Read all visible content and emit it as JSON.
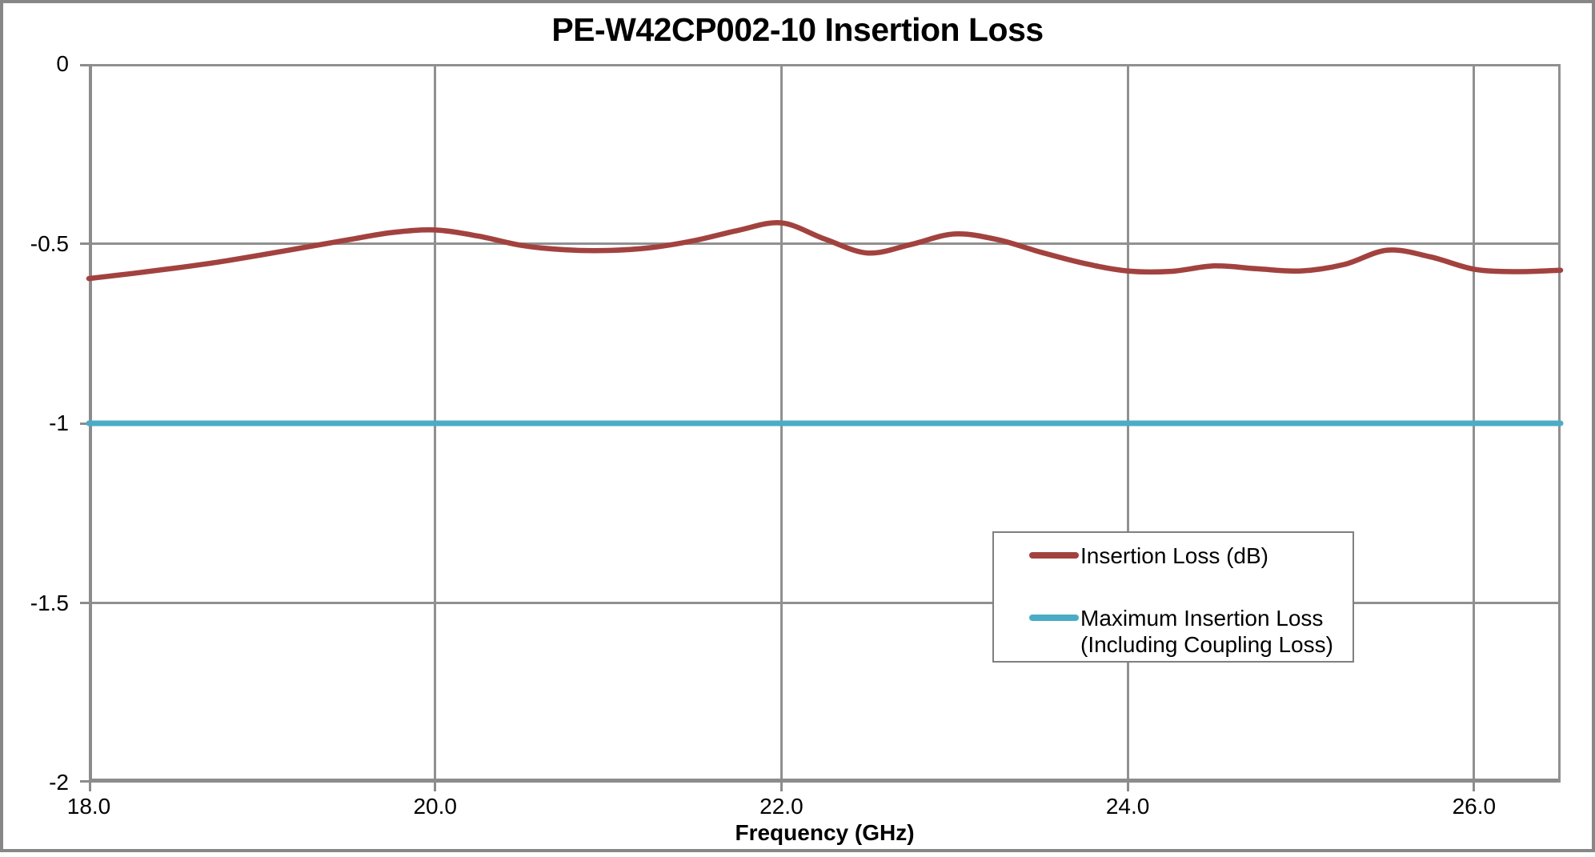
{
  "title": "PE-W42CP002-10 Insertion Loss",
  "colors": {
    "insertion_loss_line": "#A2423F",
    "max_insertion_loss_line": "#4BACC6",
    "gridline": "#909090",
    "axis": "#8C8C8C",
    "legend_border": "#7F7F7F",
    "frame": "#878787",
    "text": "#000000"
  },
  "legend": {
    "entries": [
      {
        "label": "Insertion Loss (dB)",
        "color": "#A2423F"
      },
      {
        "label": "Maximum Insertion Loss (Including Coupling Loss)",
        "label_line1": "Maximum Insertion Loss",
        "label_line2": "(Including Coupling Loss)",
        "color": "#4BACC6"
      }
    ]
  },
  "chart_data": {
    "type": "line",
    "title": "PE-W42CP002-10 Insertion Loss",
    "xlabel": "Frequency (GHz)",
    "ylabel": "",
    "xlim": [
      18.0,
      26.5
    ],
    "ylim": [
      -2.0,
      0.0
    ],
    "x_tick_values": [
      18.0,
      20.0,
      22.0,
      24.0,
      26.0
    ],
    "x_tick_labels": [
      "18.0",
      "20.0",
      "22.0",
      "24.0",
      "26.0"
    ],
    "y_tick_values": [
      0,
      -0.5,
      -1,
      -1.5,
      -2
    ],
    "y_tick_labels": [
      "0",
      "-0.5",
      "-1",
      "-1.5",
      "-2"
    ],
    "grid": true,
    "legend_position": "inside lower-right",
    "series": [
      {
        "name": "Insertion Loss (dB)",
        "color": "#A2423F",
        "x": [
          18.0,
          18.25,
          18.5,
          18.75,
          19.0,
          19.25,
          19.5,
          19.75,
          20.0,
          20.25,
          20.5,
          20.75,
          21.0,
          21.25,
          21.5,
          21.75,
          22.0,
          22.25,
          22.5,
          22.75,
          23.0,
          23.25,
          23.5,
          23.75,
          24.0,
          24.25,
          24.5,
          24.75,
          25.0,
          25.25,
          25.5,
          25.75,
          26.0,
          26.25,
          26.5
        ],
        "y": [
          -0.597,
          -0.583,
          -0.568,
          -0.551,
          -0.531,
          -0.51,
          -0.489,
          -0.469,
          -0.462,
          -0.479,
          -0.505,
          -0.517,
          -0.519,
          -0.511,
          -0.491,
          -0.463,
          -0.442,
          -0.487,
          -0.526,
          -0.502,
          -0.473,
          -0.489,
          -0.524,
          -0.555,
          -0.576,
          -0.577,
          -0.562,
          -0.57,
          -0.576,
          -0.558,
          -0.518,
          -0.537,
          -0.571,
          -0.578,
          -0.574
        ]
      },
      {
        "name": "Maximum Insertion Loss (Including Coupling Loss)",
        "color": "#4BACC6",
        "x": [
          18.0,
          26.5
        ],
        "y": [
          -1.0,
          -1.0
        ]
      }
    ]
  }
}
